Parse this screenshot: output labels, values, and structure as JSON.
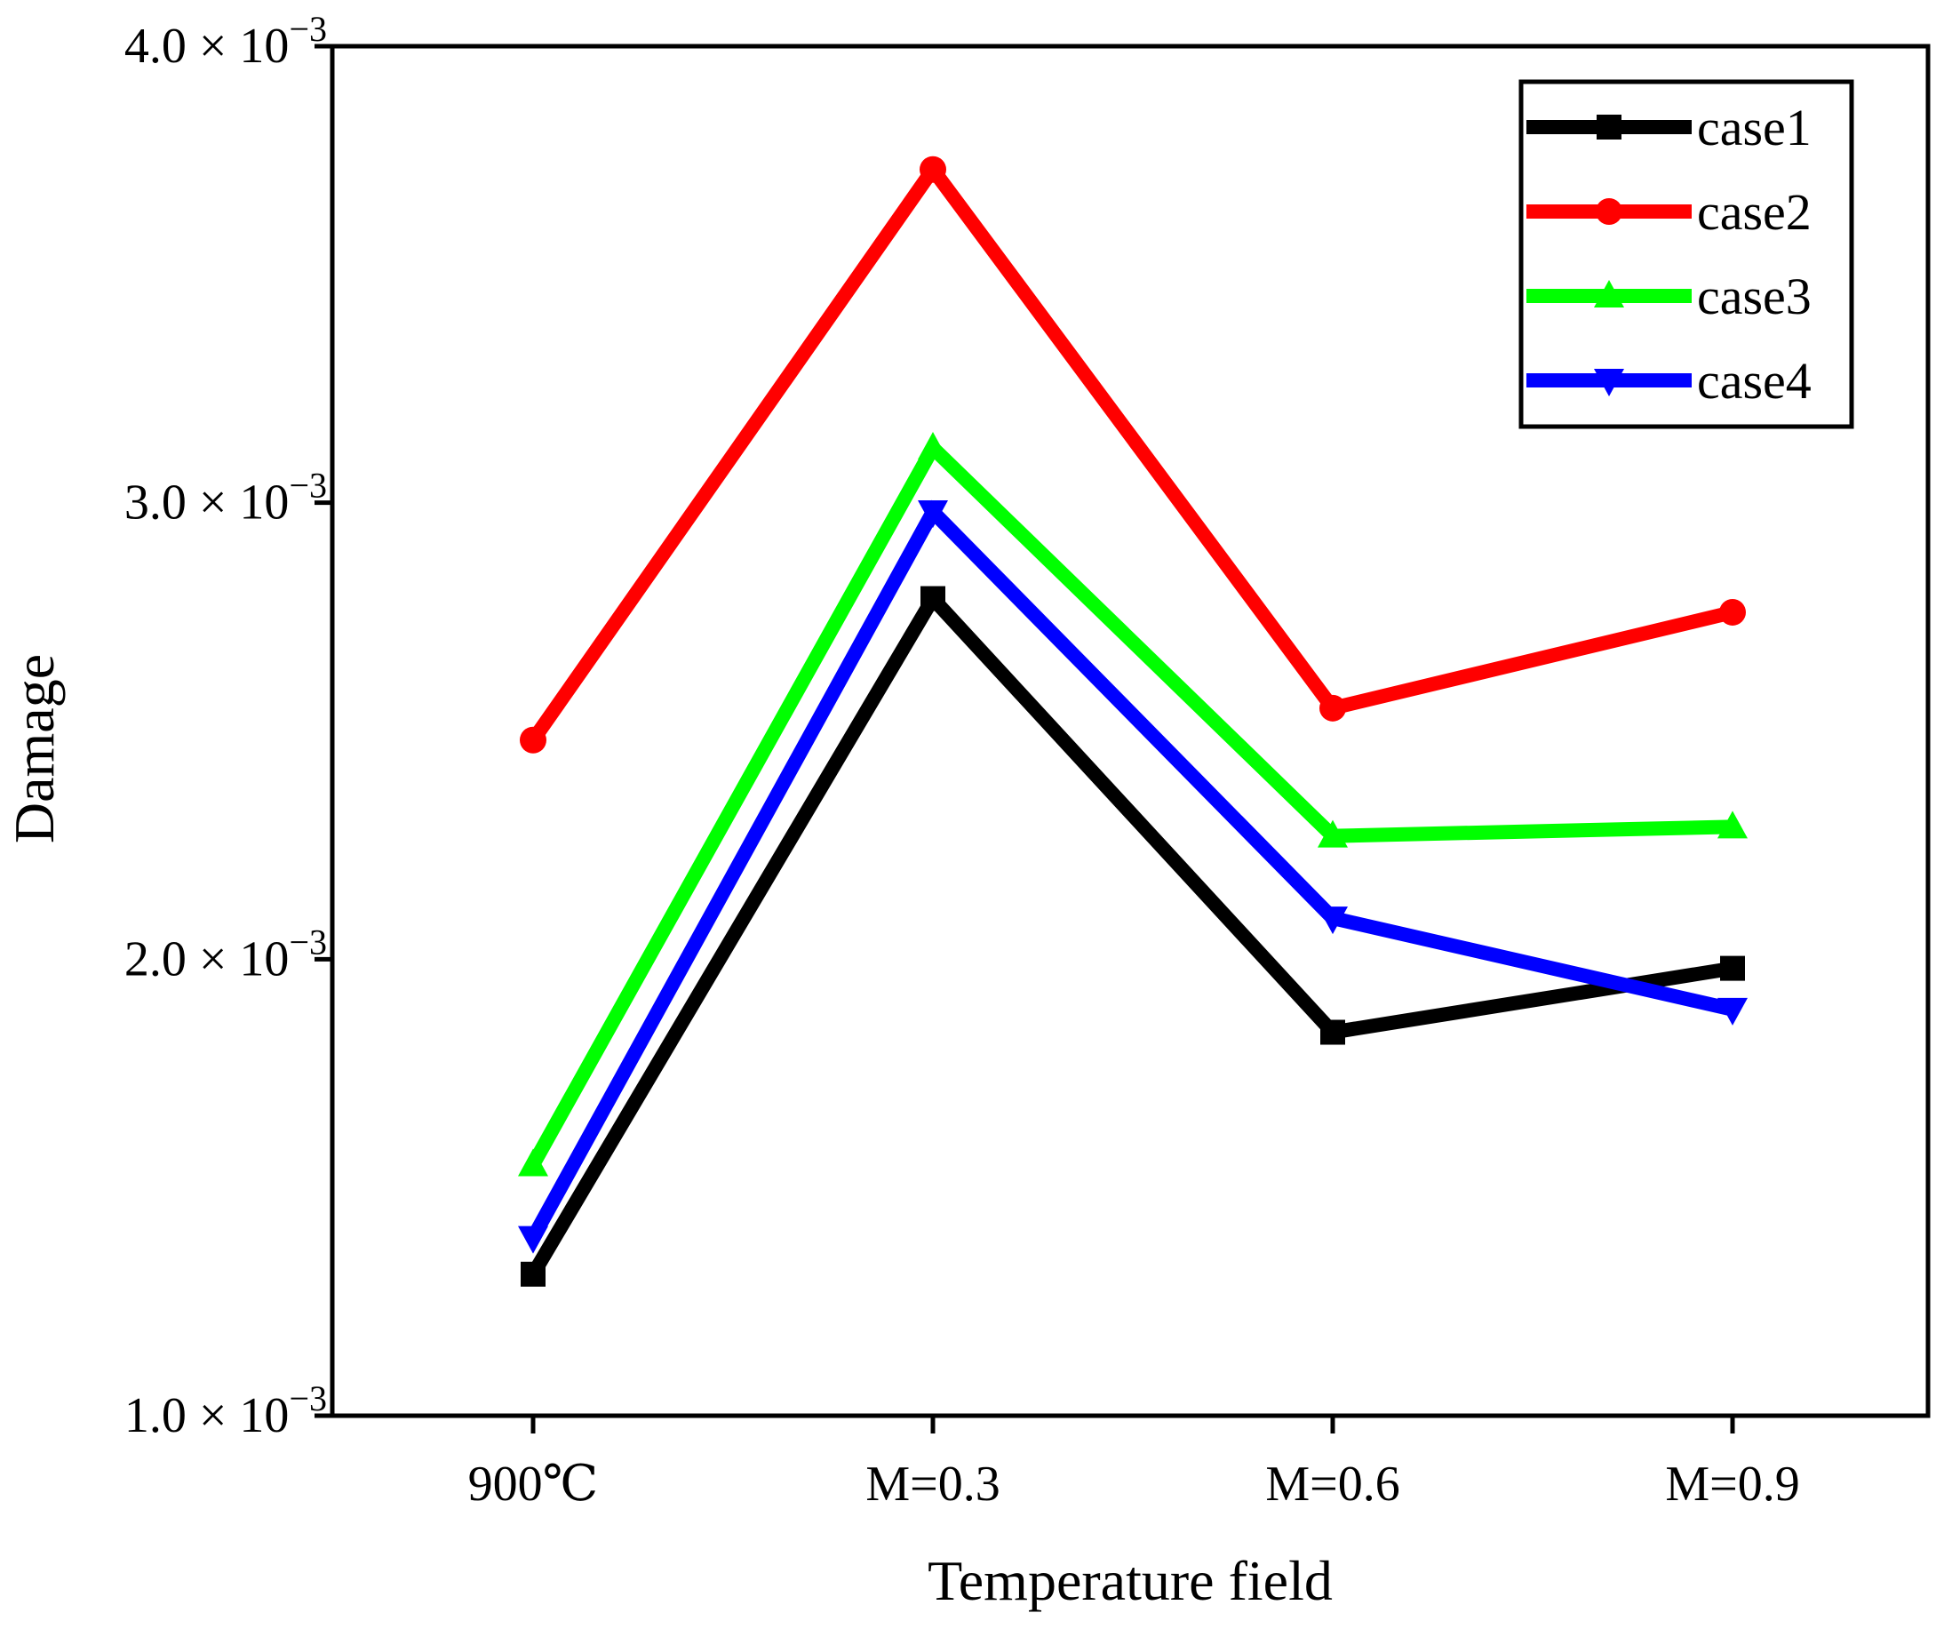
{
  "chart_data": {
    "type": "line",
    "title": "",
    "xlabel": "Temperature field",
    "ylabel": "Damage",
    "categories": [
      "900℃",
      "M=0.3",
      "M=0.6",
      "M=0.9"
    ],
    "ylim": [
      0.001,
      0.004
    ],
    "yticks": [
      {
        "value": 0.001,
        "mantissa": "1.0",
        "times": "×",
        "base": "10",
        "exponent": "−3"
      },
      {
        "value": 0.002,
        "mantissa": "2.0",
        "times": "×",
        "base": "10",
        "exponent": "−3"
      },
      {
        "value": 0.003,
        "mantissa": "3.0",
        "times": "×",
        "base": "10",
        "exponent": "−3"
      },
      {
        "value": 0.004,
        "mantissa": "4.0",
        "times": "×",
        "base": "10",
        "exponent": "−3"
      }
    ],
    "grid": false,
    "legend_position": "top-right",
    "series": [
      {
        "name": "case1",
        "color": "#000000",
        "marker": "square",
        "values": [
          0.00131,
          0.00279,
          0.00184,
          0.00198
        ]
      },
      {
        "name": "case2",
        "color": "#ff0000",
        "marker": "circle",
        "values": [
          0.00248,
          0.00373,
          0.00255,
          0.00276
        ]
      },
      {
        "name": "case3",
        "color": "#00ff00",
        "marker": "triangle-up",
        "values": [
          0.00155,
          0.00312,
          0.00227,
          0.00229
        ]
      },
      {
        "name": "case4",
        "color": "#0000ff",
        "marker": "triangle-down",
        "values": [
          0.00139,
          0.00298,
          0.00209,
          0.00189
        ]
      }
    ]
  }
}
